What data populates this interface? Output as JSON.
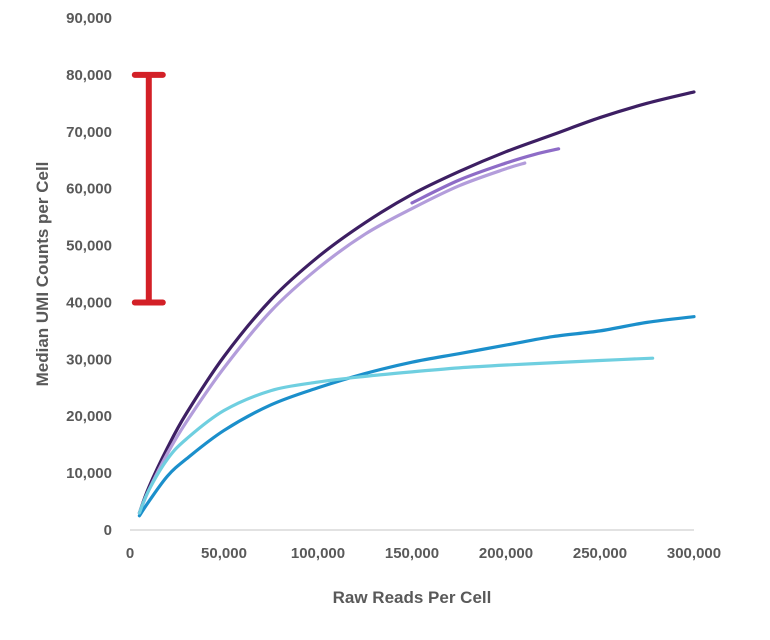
{
  "chart_data": {
    "type": "line",
    "title": "",
    "xlabel": "Raw Reads Per Cell",
    "ylabel": "Median UMI Counts per Cell",
    "xlim": [
      0,
      300000
    ],
    "ylim": [
      0,
      90000
    ],
    "x_ticks": [
      "0",
      "50,000",
      "100,000",
      "150,000",
      "200,000",
      "250,000",
      "300,000"
    ],
    "y_ticks": [
      "0",
      "10,000",
      "20,000",
      "30,000",
      "40,000",
      "50,000",
      "60,000",
      "70,000",
      "80,000",
      "90,000"
    ],
    "grid": false,
    "legend": "none",
    "series": [
      {
        "color": "#3d1f63",
        "x": [
          5000,
          10000,
          20000,
          30000,
          50000,
          75000,
          100000,
          125000,
          150000,
          175000,
          200000,
          225000,
          250000,
          275000,
          300000
        ],
        "y": [
          3000,
          7500,
          14500,
          20500,
          30500,
          40500,
          48000,
          54000,
          59000,
          63000,
          66500,
          69500,
          72500,
          75000,
          77000
        ]
      },
      {
        "color": "#b39ddb",
        "x": [
          5000,
          10000,
          20000,
          30000,
          50000,
          75000,
          100000,
          125000,
          150000,
          175000,
          200000,
          210000
        ],
        "y": [
          3000,
          7000,
          13500,
          19000,
          28500,
          38500,
          46000,
          52000,
          56500,
          60500,
          63500,
          64500
        ]
      },
      {
        "color": "#8e6cc7",
        "x": [
          150000,
          175000,
          200000,
          215000,
          228000
        ],
        "y": [
          57500,
          61500,
          64500,
          66000,
          67000
        ]
      },
      {
        "color": "#1b8fcb",
        "x": [
          5000,
          10000,
          20000,
          30000,
          50000,
          75000,
          100000,
          125000,
          150000,
          175000,
          200000,
          225000,
          250000,
          275000,
          300000
        ],
        "y": [
          2500,
          5000,
          9500,
          12500,
          17500,
          22000,
          25000,
          27500,
          29500,
          31000,
          32500,
          34000,
          35000,
          36500,
          37500
        ]
      },
      {
        "color": "#6fcfe0",
        "x": [
          5000,
          10000,
          20000,
          30000,
          50000,
          75000,
          100000,
          125000,
          150000,
          175000,
          200000,
          225000,
          250000,
          278000
        ],
        "y": [
          3000,
          7000,
          12500,
          16000,
          21000,
          24500,
          26000,
          27000,
          27800,
          28500,
          29000,
          29400,
          29800,
          30200
        ]
      }
    ],
    "annotations": [
      {
        "type": "range-bar",
        "color": "#d32027",
        "x": 10000,
        "y_from": 40000,
        "y_to": 80000
      }
    ]
  }
}
